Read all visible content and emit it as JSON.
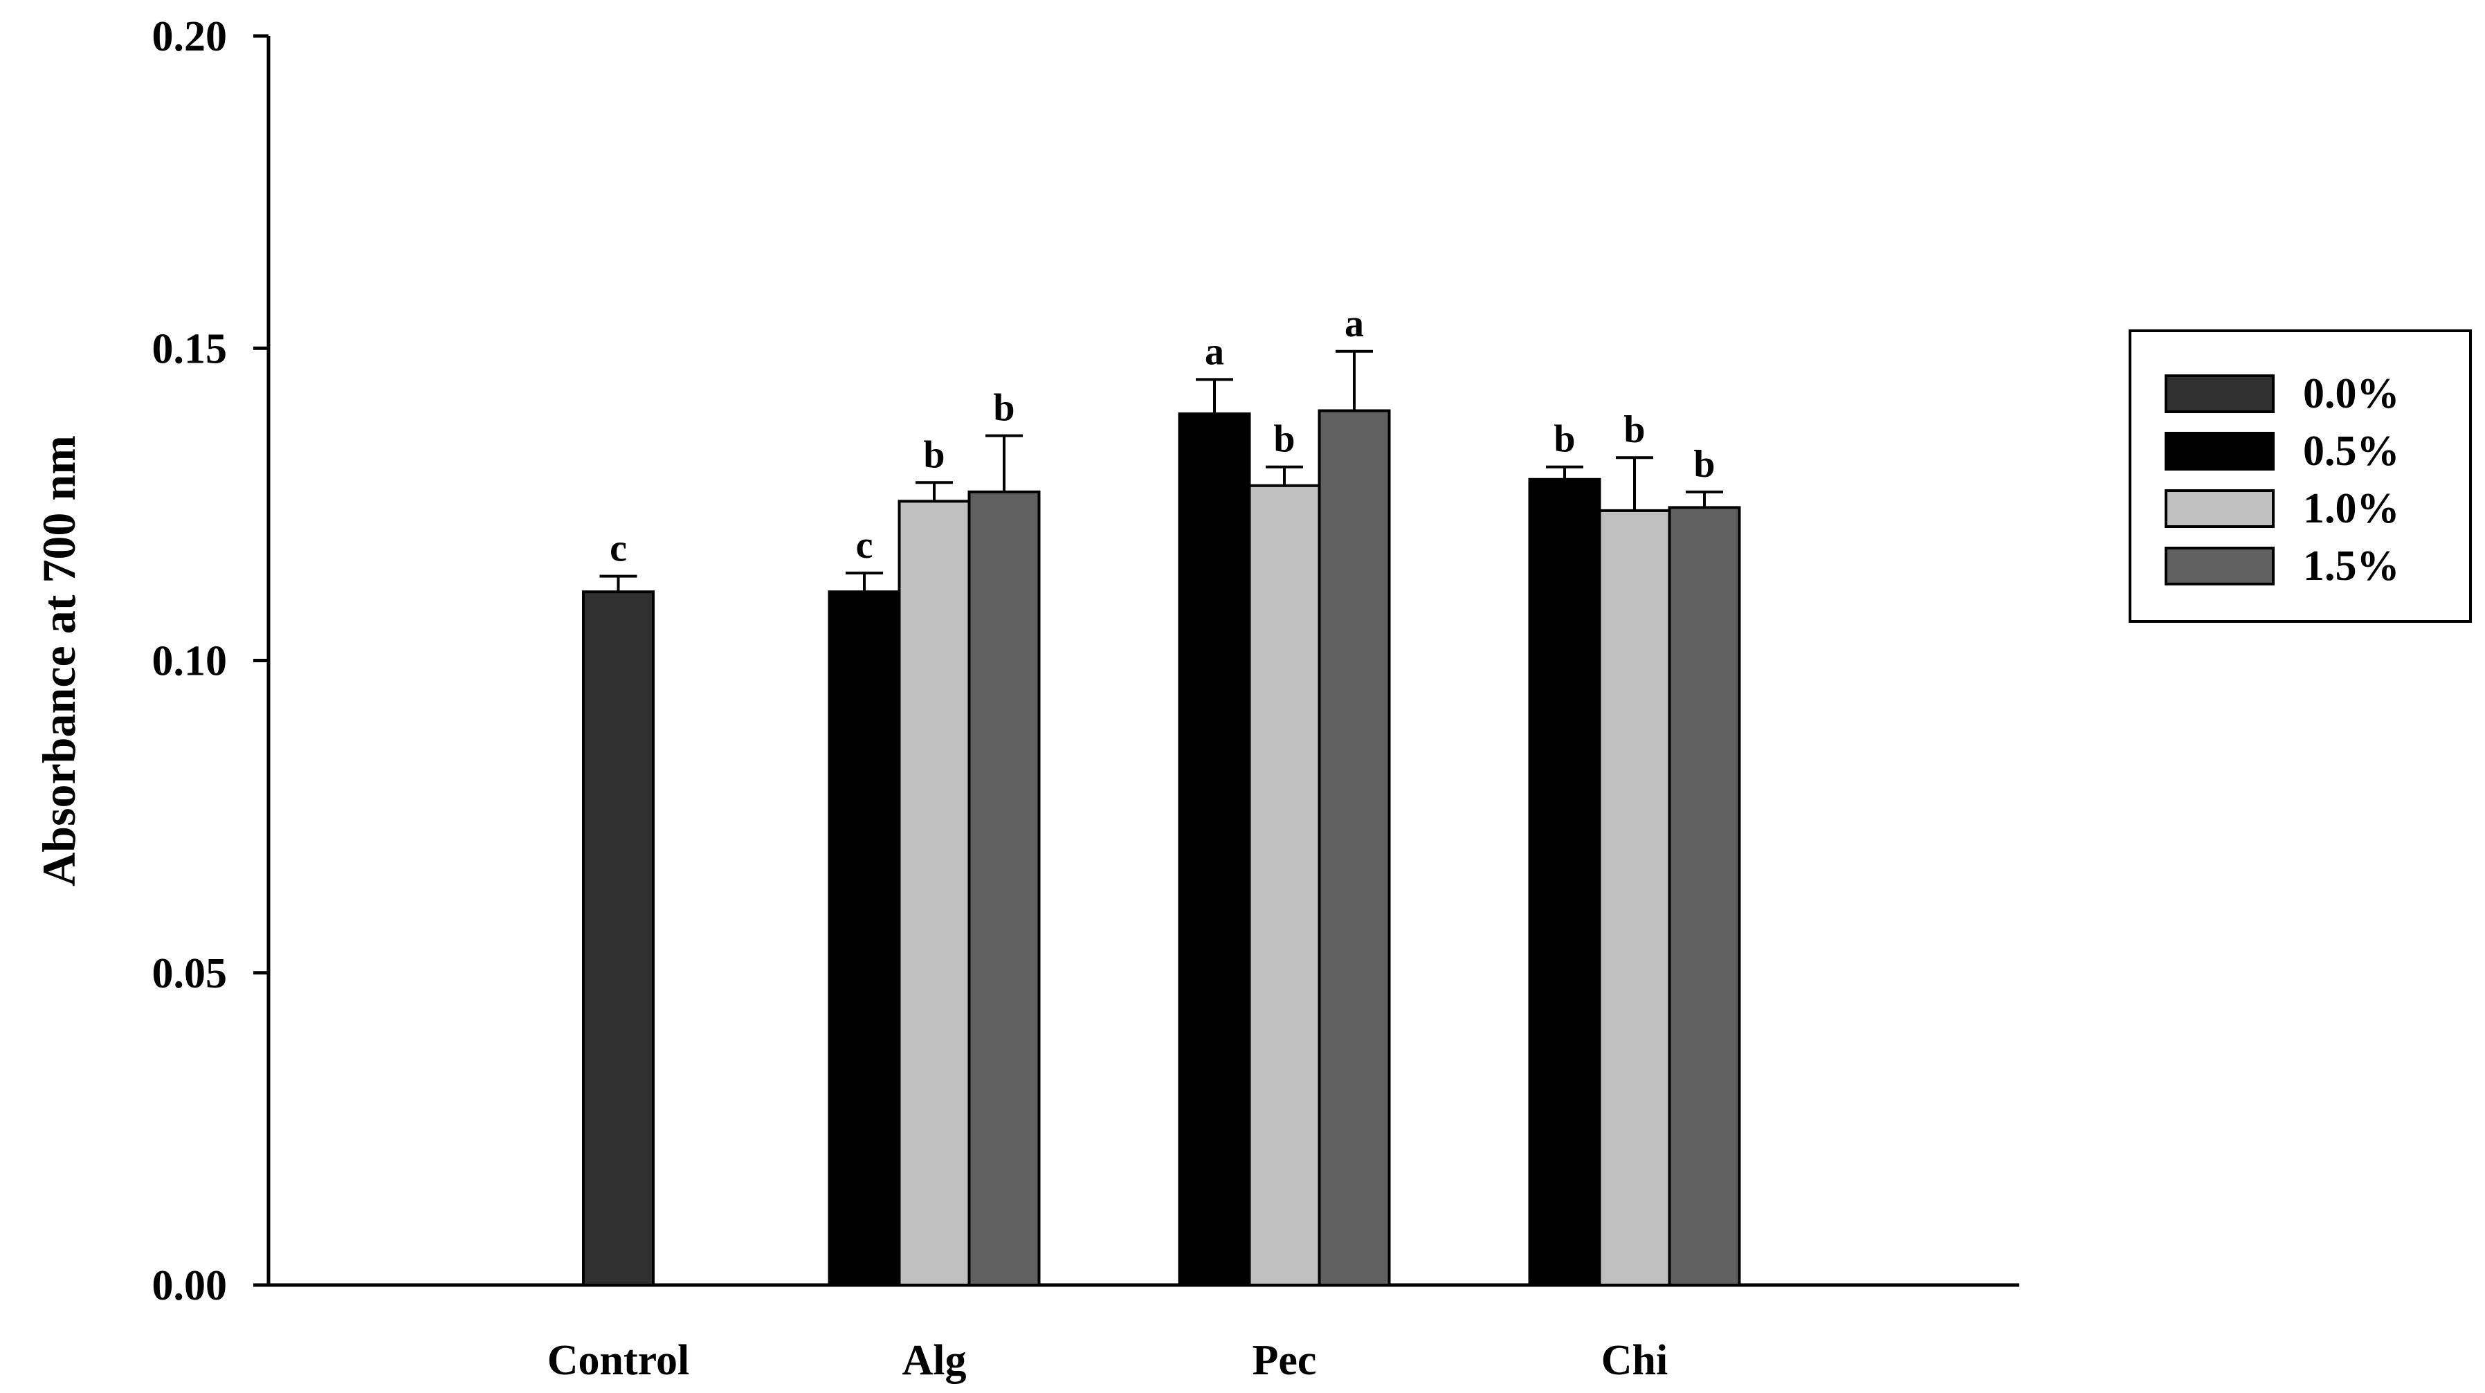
{
  "chart_data": {
    "type": "bar",
    "title": "",
    "xlabel": "",
    "ylabel": "Absorbance at 700 nm",
    "ylim": [
      0,
      0.2
    ],
    "yticks": [
      "0.00",
      "0.05",
      "0.10",
      "0.15",
      "0.20"
    ],
    "grid": false,
    "legend_position": "right",
    "categories": [
      "Control",
      "Alg",
      "Pec",
      "Chi"
    ],
    "series": [
      {
        "name": "0.0%",
        "color": "#303030",
        "values": [
          0.111,
          null,
          null,
          null
        ],
        "errors": [
          0.0025,
          null,
          null,
          null
        ],
        "letters": [
          "c",
          null,
          null,
          null
        ]
      },
      {
        "name": "0.5%",
        "color": "#000000",
        "values": [
          null,
          0.111,
          0.1395,
          0.129
        ],
        "errors": [
          null,
          0.003,
          0.0055,
          0.002
        ],
        "letters": [
          null,
          "c",
          "a",
          "b"
        ]
      },
      {
        "name": "1.0%",
        "color": "#c0c0c0",
        "values": [
          null,
          0.1255,
          0.128,
          0.124
        ],
        "errors": [
          null,
          0.003,
          0.003,
          0.0085
        ],
        "letters": [
          null,
          "b",
          "b",
          "b"
        ]
      },
      {
        "name": "1.5%",
        "color": "#606060",
        "values": [
          null,
          0.127,
          0.14,
          0.1245
        ],
        "errors": [
          null,
          0.009,
          0.0095,
          0.0025
        ],
        "letters": [
          null,
          "b",
          "a",
          "b"
        ]
      }
    ]
  }
}
